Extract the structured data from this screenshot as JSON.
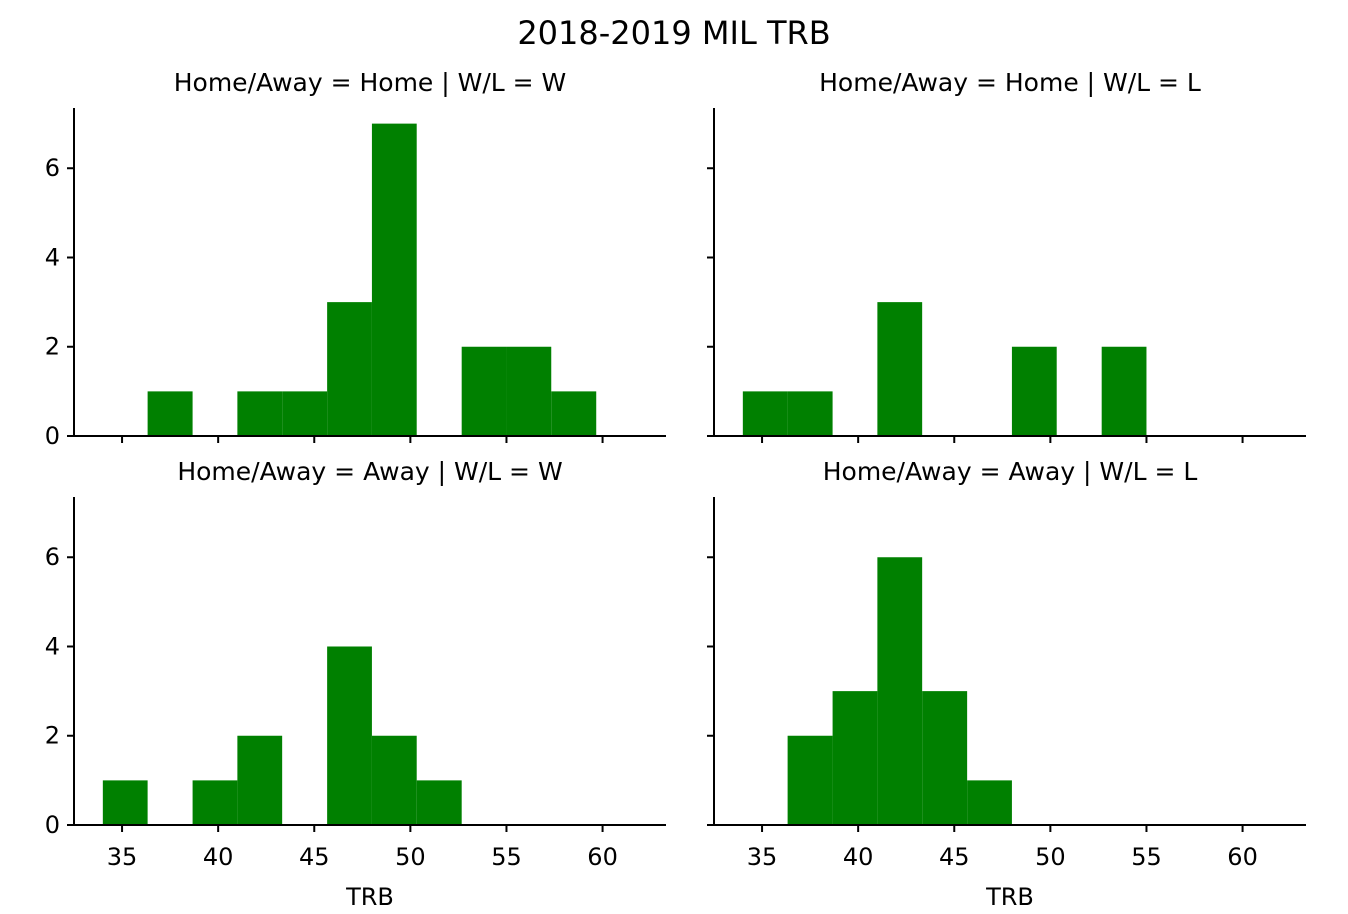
{
  "chart_data": {
    "type": "histogram",
    "suptitle": "2018-2019 MIL TRB",
    "bar_color": "#008000",
    "axis_color": "#000000",
    "grid": false,
    "legend": "none",
    "shared_x": true,
    "shared_y": true,
    "xlim": [
      32.5,
      63.3
    ],
    "ylim": [
      0,
      7.35
    ],
    "xticks": [
      35,
      40,
      45,
      50,
      55,
      60
    ],
    "yticks": [
      0,
      2,
      4,
      6
    ],
    "xlabel": "TRB",
    "panels": [
      {
        "title": "Home/Away = Home | W/L = W",
        "bins": [
          {
            "x0": 36.33,
            "x1": 38.67,
            "count": 1
          },
          {
            "x0": 41.0,
            "x1": 43.33,
            "count": 1
          },
          {
            "x0": 43.33,
            "x1": 45.67,
            "count": 1
          },
          {
            "x0": 45.67,
            "x1": 48.0,
            "count": 3
          },
          {
            "x0": 48.0,
            "x1": 50.33,
            "count": 7
          },
          {
            "x0": 52.67,
            "x1": 55.0,
            "count": 2
          },
          {
            "x0": 55.0,
            "x1": 57.33,
            "count": 2
          },
          {
            "x0": 57.33,
            "x1": 59.67,
            "count": 1
          }
        ]
      },
      {
        "title": "Home/Away = Home | W/L = L",
        "bins": [
          {
            "x0": 34.0,
            "x1": 36.33,
            "count": 1
          },
          {
            "x0": 36.33,
            "x1": 38.67,
            "count": 1
          },
          {
            "x0": 41.0,
            "x1": 43.33,
            "count": 3
          },
          {
            "x0": 48.0,
            "x1": 50.33,
            "count": 2
          },
          {
            "x0": 52.67,
            "x1": 55.0,
            "count": 2
          }
        ]
      },
      {
        "title": "Home/Away = Away | W/L = W",
        "bins": [
          {
            "x0": 34.0,
            "x1": 36.33,
            "count": 1
          },
          {
            "x0": 38.67,
            "x1": 41.0,
            "count": 1
          },
          {
            "x0": 41.0,
            "x1": 43.33,
            "count": 2
          },
          {
            "x0": 45.67,
            "x1": 48.0,
            "count": 4
          },
          {
            "x0": 48.0,
            "x1": 50.33,
            "count": 2
          },
          {
            "x0": 50.33,
            "x1": 52.67,
            "count": 1
          }
        ]
      },
      {
        "title": "Home/Away = Away | W/L = L",
        "bins": [
          {
            "x0": 36.33,
            "x1": 38.67,
            "count": 2
          },
          {
            "x0": 38.67,
            "x1": 41.0,
            "count": 3
          },
          {
            "x0": 41.0,
            "x1": 43.33,
            "count": 6
          },
          {
            "x0": 43.33,
            "x1": 45.67,
            "count": 3
          },
          {
            "x0": 45.67,
            "x1": 48.0,
            "count": 1
          }
        ]
      }
    ]
  }
}
